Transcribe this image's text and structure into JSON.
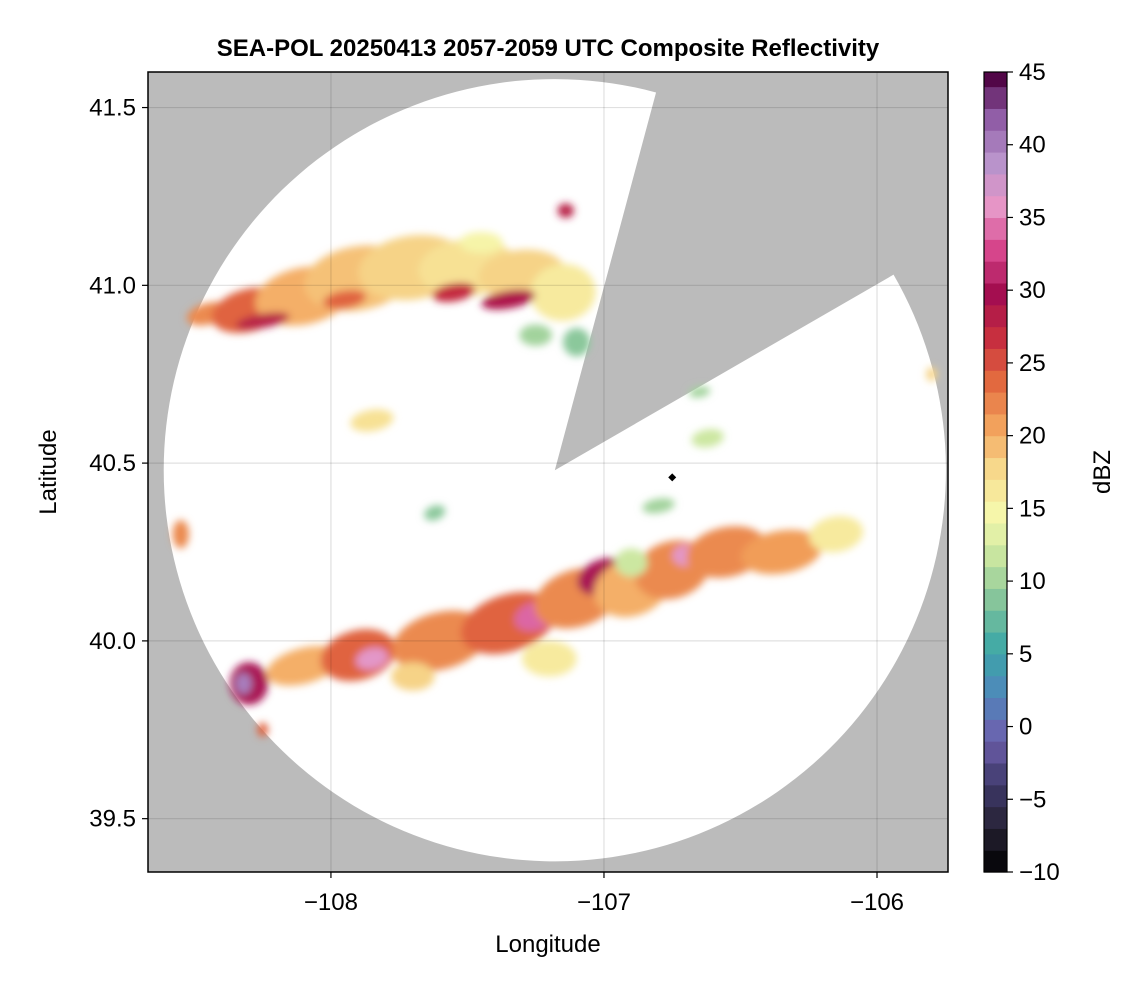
{
  "chart_data": {
    "type": "heatmap",
    "title": "SEA-POL 20250413 2057-2059 UTC Composite Reflectivity",
    "xlabel": "Longitude",
    "ylabel": "Latitude",
    "xlim": [
      -108.67,
      -105.74
    ],
    "ylim": [
      39.35,
      41.6
    ],
    "xticks": [
      -108,
      -107,
      -106
    ],
    "xtick_labels": [
      "−108",
      "−107",
      "−106"
    ],
    "yticks": [
      39.5,
      40.0,
      40.5,
      41.0,
      41.5
    ],
    "ytick_labels": [
      "39.5",
      "40.0",
      "40.5",
      "41.0",
      "41.5"
    ],
    "grid": true,
    "background_color": "#bbbbbb",
    "radar": {
      "center_lon": -107.18,
      "center_lat": 40.48,
      "range_deg_lat": 1.1,
      "blocked_sectors_deg_cw_from_north": [
        [
          15,
          60
        ]
      ],
      "site_marker": {
        "lon": -106.75,
        "lat": 40.46
      }
    },
    "colorbar": {
      "label": "dBZ",
      "range": [
        -10,
        45
      ],
      "step": 1.5,
      "ticks": [
        -10,
        -5,
        0,
        5,
        10,
        15,
        20,
        25,
        30,
        35,
        40,
        45
      ],
      "tick_labels": [
        "−10",
        "−5",
        "0",
        "5",
        "10",
        "15",
        "20",
        "25",
        "30",
        "35",
        "40",
        "45"
      ],
      "colormap": [
        "#000000",
        "#262234",
        "#3f3a6b",
        "#6e5fad",
        "#4f87bc",
        "#3ba7a7",
        "#7cc19a",
        "#c2e29e",
        "#f6f9ad",
        "#f7dc8f",
        "#f3a55e",
        "#e36c3f",
        "#c8303f",
        "#a40d4f",
        "#d6468c",
        "#e697c8",
        "#b793cb",
        "#8e5aa5",
        "#4d0040"
      ]
    },
    "echoes": [
      {
        "name": "northern-band",
        "lon_range": [
          -108.55,
          -107.0
        ],
        "lat_range": [
          40.78,
          41.22
        ],
        "dbz_range": [
          8,
          32
        ],
        "mean_dbz": 20
      },
      {
        "name": "southern-band",
        "lon_range": [
          -108.4,
          -106.05
        ],
        "lat_range": [
          39.75,
          40.38
        ],
        "dbz_range": [
          8,
          42
        ],
        "mean_dbz": 24
      },
      {
        "name": "southwest-cell",
        "lon": -108.32,
        "lat": 39.88,
        "max_dbz": 40
      },
      {
        "name": "small-cell",
        "lon": -107.85,
        "lat": 40.65,
        "max_dbz": 17
      },
      {
        "name": "small-cell",
        "lon": -106.62,
        "lat": 40.58,
        "max_dbz": 12
      }
    ]
  }
}
